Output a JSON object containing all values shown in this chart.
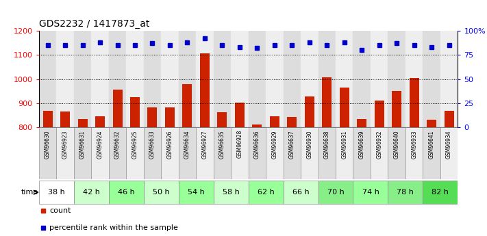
{
  "title": "GDS2232 / 1417873_at",
  "samples": [
    "GSM96630",
    "GSM96923",
    "GSM96631",
    "GSM96924",
    "GSM96632",
    "GSM96925",
    "GSM96633",
    "GSM96926",
    "GSM96634",
    "GSM96927",
    "GSM96635",
    "GSM96928",
    "GSM96636",
    "GSM96929",
    "GSM96637",
    "GSM96930",
    "GSM96638",
    "GSM96931",
    "GSM96639",
    "GSM96932",
    "GSM96640",
    "GSM96933",
    "GSM96641",
    "GSM96934"
  ],
  "bar_values": [
    868,
    865,
    836,
    847,
    957,
    924,
    884,
    882,
    980,
    1107,
    862,
    903,
    812,
    845,
    843,
    928,
    1007,
    965,
    836,
    912,
    952,
    1005,
    832,
    870
  ],
  "percentile_values": [
    85,
    85,
    85,
    88,
    85,
    85,
    87,
    85,
    88,
    92,
    85,
    83,
    82,
    85,
    85,
    88,
    85,
    88,
    80,
    85,
    87,
    85,
    83,
    85
  ],
  "time_groups": [
    {
      "label": "38 h",
      "indices": [
        0,
        1
      ],
      "color": "#ffffff"
    },
    {
      "label": "42 h",
      "indices": [
        2,
        3
      ],
      "color": "#ccffcc"
    },
    {
      "label": "46 h",
      "indices": [
        4,
        5
      ],
      "color": "#99ff99"
    },
    {
      "label": "50 h",
      "indices": [
        6,
        7
      ],
      "color": "#ccffcc"
    },
    {
      "label": "54 h",
      "indices": [
        8,
        9
      ],
      "color": "#99ff99"
    },
    {
      "label": "58 h",
      "indices": [
        10,
        11
      ],
      "color": "#ccffcc"
    },
    {
      "label": "62 h",
      "indices": [
        12,
        13
      ],
      "color": "#99ff99"
    },
    {
      "label": "66 h",
      "indices": [
        14,
        15
      ],
      "color": "#ccffcc"
    },
    {
      "label": "70 h",
      "indices": [
        16,
        17
      ],
      "color": "#88ee88"
    },
    {
      "label": "74 h",
      "indices": [
        18,
        19
      ],
      "color": "#99ff99"
    },
    {
      "label": "78 h",
      "indices": [
        20,
        21
      ],
      "color": "#88ee88"
    },
    {
      "label": "82 h",
      "indices": [
        22,
        23
      ],
      "color": "#55dd55"
    }
  ],
  "col_bg_even": "#dddddd",
  "col_bg_odd": "#eeeeee",
  "bar_color": "#cc2200",
  "percentile_color": "#0000cc",
  "ylim_left": [
    800,
    1200
  ],
  "ylim_right": [
    0,
    100
  ],
  "yticks_left": [
    800,
    900,
    1000,
    1100,
    1200
  ],
  "yticks_right": [
    0,
    25,
    50,
    75,
    100
  ],
  "grid_lines": [
    900,
    1000,
    1100
  ],
  "legend_count_label": "count",
  "legend_pct_label": "percentile rank within the sample",
  "background_color": "#ffffff"
}
